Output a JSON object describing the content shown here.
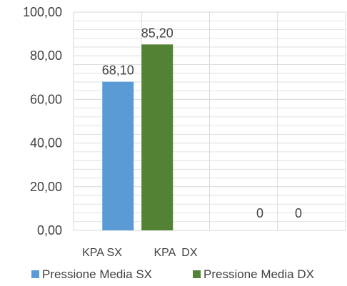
{
  "chart_data": {
    "type": "bar",
    "categories": [
      "KPA SX",
      "KPA  DX",
      "",
      ""
    ],
    "series": [
      {
        "name": "Pressione Media SX",
        "values": [
          68.1,
          null,
          null,
          0
        ],
        "labels": [
          "68,10",
          "",
          "",
          "0"
        ]
      },
      {
        "name": "Pressione Media DX",
        "values": [
          null,
          85.2,
          null,
          0
        ],
        "labels": [
          "",
          "85,20",
          "",
          "0"
        ]
      }
    ],
    "ylim": [
      0,
      100
    ],
    "yticks": [
      "0,00",
      "20,00",
      "40,00",
      "60,00",
      "80,00",
      "100,00"
    ],
    "minor_gridlines": true,
    "legend_position": "bottom",
    "colors": {
      "sx": "#5b9bd5",
      "dx": "#548235",
      "grid": "#d9d9d9"
    }
  }
}
